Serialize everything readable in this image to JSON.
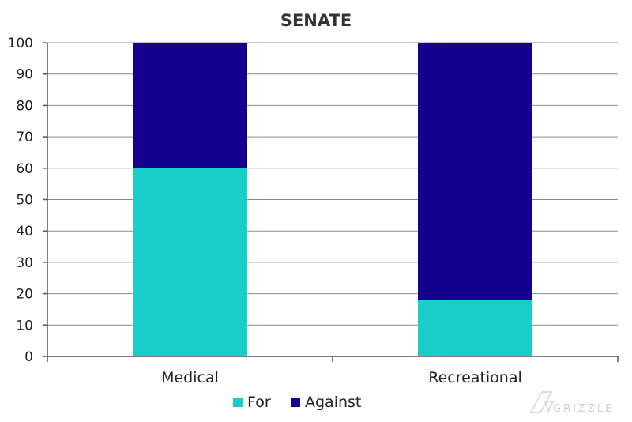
{
  "chart_data": {
    "type": "bar",
    "stacked": true,
    "title": "SENATE",
    "categories": [
      "Medical",
      "Recreational"
    ],
    "series": [
      {
        "name": "For",
        "values": [
          60,
          18
        ],
        "color": "#19CDC9"
      },
      {
        "name": "Against",
        "values": [
          40,
          82
        ],
        "color": "#16008F"
      }
    ],
    "xlabel": "",
    "ylabel": "",
    "ylim": [
      0,
      100
    ],
    "yticks": [
      0,
      10,
      20,
      30,
      40,
      50,
      60,
      70,
      80,
      90,
      100
    ],
    "grid": true,
    "legend": "bottom"
  },
  "watermark": {
    "text": "GRIZZLE"
  }
}
